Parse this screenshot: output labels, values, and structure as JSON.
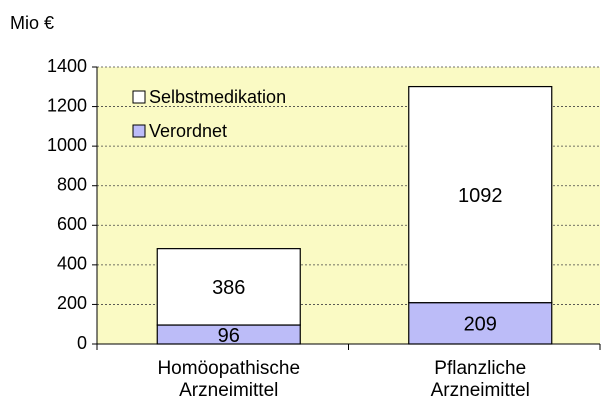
{
  "chart_data": {
    "type": "stacked_bar",
    "y_label": "Mio €",
    "categories": [
      "Homöopathische Arzneimittel",
      "Pflanzliche Arzneimittel"
    ],
    "series": [
      {
        "name": "Verordnet",
        "color": "#bcbcf8",
        "values": [
          96,
          209
        ]
      },
      {
        "name": "Selbstmedikation",
        "color": "#ffffff",
        "values": [
          386,
          1092
        ]
      }
    ],
    "ylim": [
      0,
      1400
    ],
    "yticks": [
      0,
      200,
      400,
      600,
      800,
      1000,
      1200,
      1400
    ],
    "grid": true,
    "background": "#fafac4",
    "legend": "upper left"
  }
}
